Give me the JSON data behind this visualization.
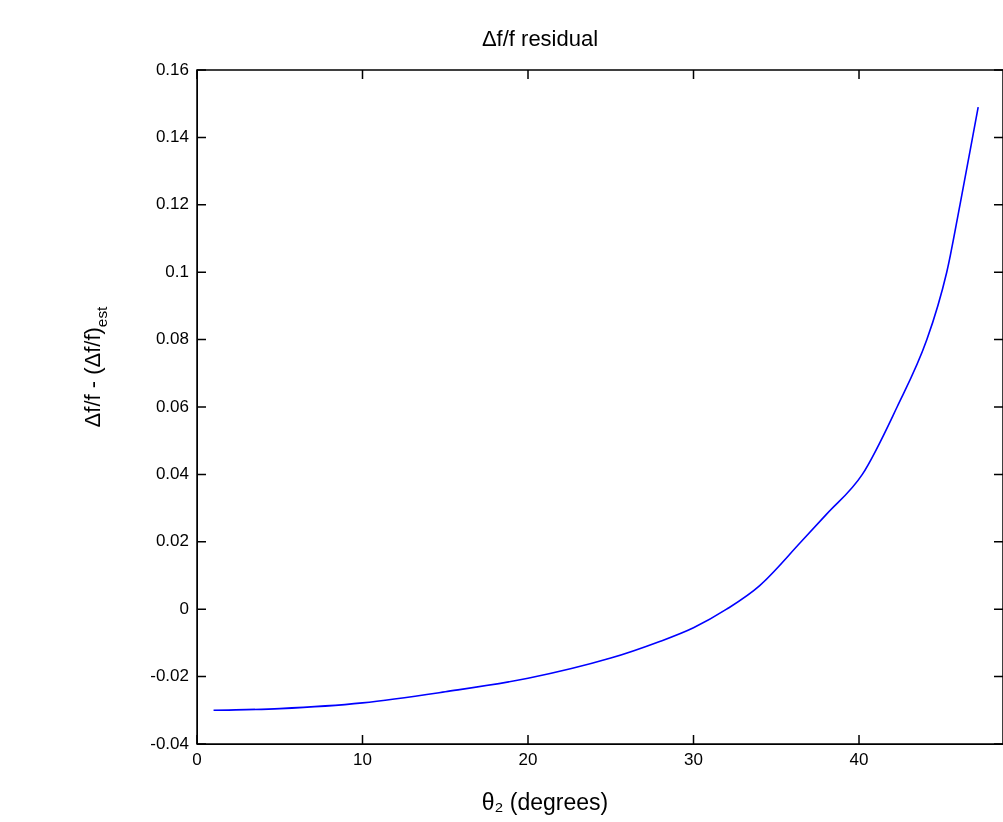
{
  "chart_data": {
    "type": "line",
    "title": "Δf/f residual",
    "xlabel": "θ₂ (degrees)",
    "ylabel": "Δf/f - (Δf/f)$_{est}$",
    "x": [
      1,
      5,
      10,
      15,
      20,
      25,
      28,
      30,
      32,
      34,
      36.5,
      38,
      40.2,
      42.3,
      44.1,
      45.3,
      46.1,
      47.2
    ],
    "series": [
      {
        "color": "#0000ff",
        "values": [
          -0.03,
          -0.0295,
          -0.0278,
          -0.0245,
          -0.0205,
          -0.0145,
          -0.0095,
          -0.0055,
          0,
          0.007,
          0.02,
          0.028,
          0.04,
          0.06,
          0.08,
          0.1,
          0.12,
          0.149
        ]
      }
    ],
    "xlim": [
      0,
      48.7
    ],
    "xticks": [
      0,
      10,
      20,
      30,
      40
    ],
    "ylim": [
      -0.04,
      0.16
    ],
    "yticks": [
      -0.04,
      -0.02,
      0,
      0.02,
      0.04,
      0.06,
      0.08,
      0.1,
      0.12,
      0.14,
      0.16
    ],
    "grid": false,
    "legend": false,
    "marker": "none",
    "line_style": "solid"
  }
}
